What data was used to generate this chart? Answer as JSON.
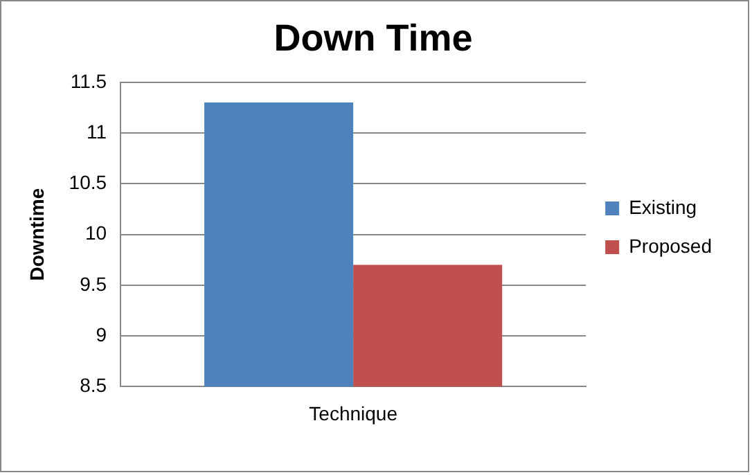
{
  "chart_data": {
    "type": "bar",
    "title": "Down Time",
    "ylabel": "Downtime",
    "categories": [
      "Technique"
    ],
    "series": [
      {
        "name": "Existing",
        "color": "#4f81bd",
        "values": [
          11.3
        ]
      },
      {
        "name": "Proposed",
        "color": "#c0504d",
        "values": [
          9.7
        ]
      }
    ],
    "ylim": [
      8.5,
      11.5
    ],
    "yticks": [
      8.5,
      9,
      9.5,
      10,
      10.5,
      11,
      11.5
    ],
    "grid": "y",
    "legend": "right"
  }
}
